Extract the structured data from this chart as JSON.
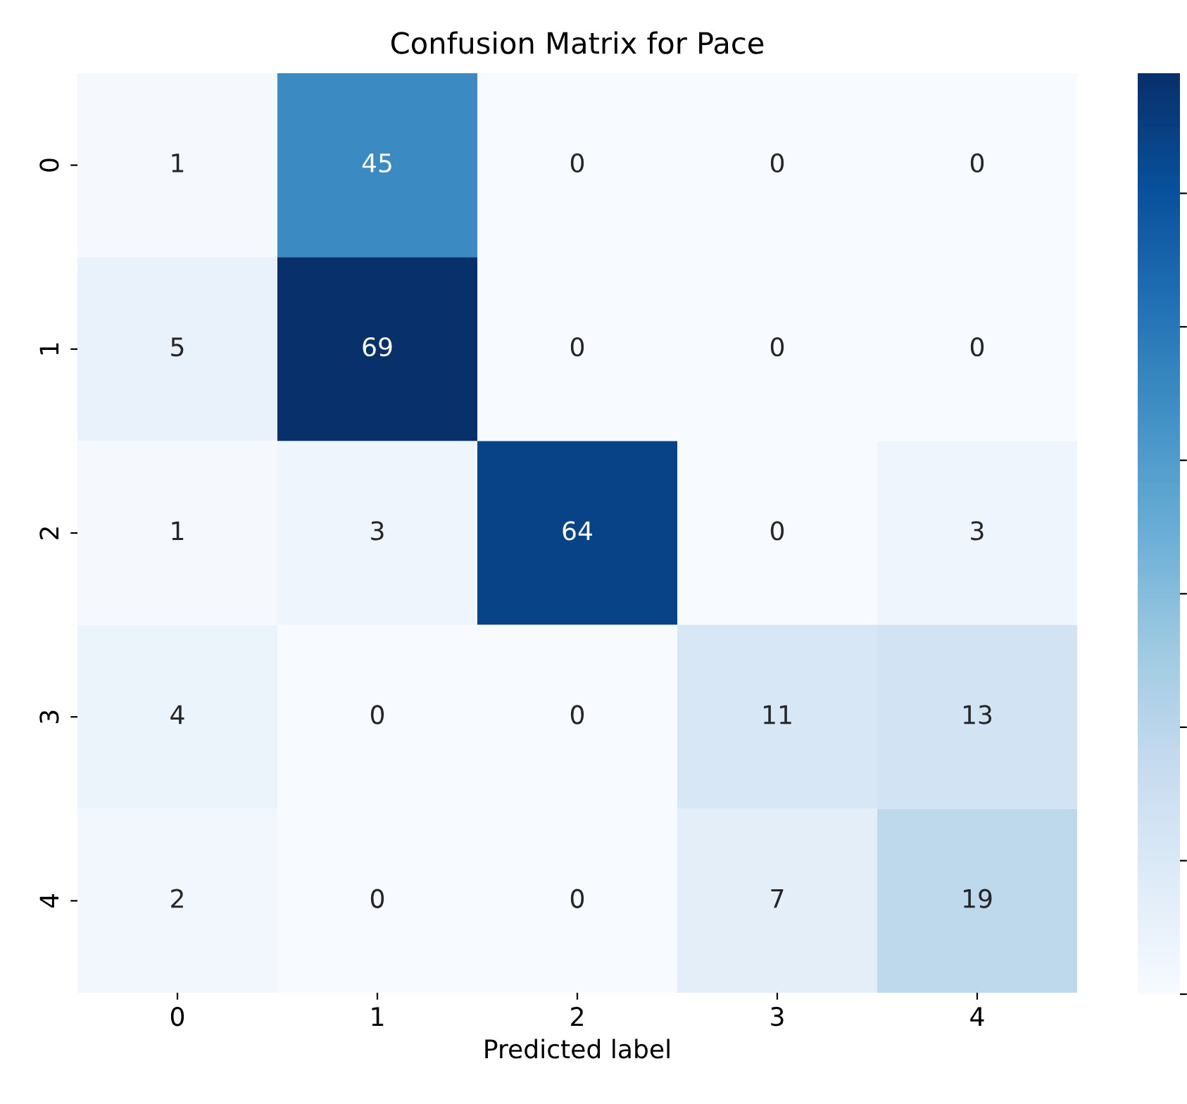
{
  "chart_data": {
    "type": "heatmap",
    "title": "Confusion Matrix for Pace",
    "xlabel": "Predicted label",
    "categories": [
      "0",
      "1",
      "2",
      "3",
      "4"
    ],
    "y_categories": [
      "0",
      "1",
      "2",
      "3",
      "4"
    ],
    "cells": [
      [
        1,
        45,
        0,
        0,
        0
      ],
      [
        5,
        69,
        0,
        0,
        0
      ],
      [
        1,
        3,
        64,
        0,
        3
      ],
      [
        4,
        0,
        0,
        11,
        13
      ],
      [
        2,
        0,
        0,
        7,
        19
      ]
    ],
    "data_labels": true
  }
}
